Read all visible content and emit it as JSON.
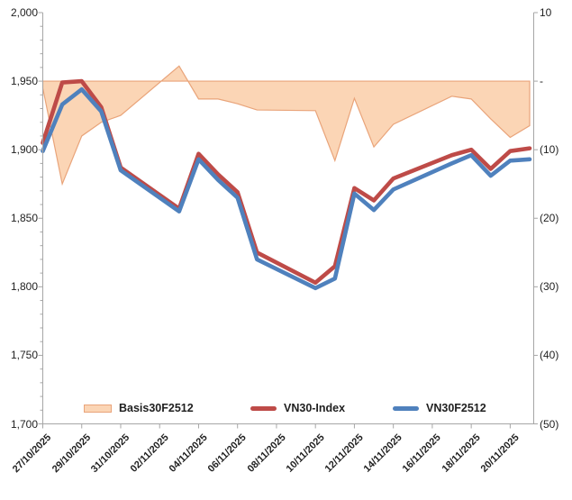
{
  "chart_data": {
    "type": "line",
    "title": "",
    "x_axis": {
      "start_date": "27/10/2025",
      "end_date": "21/11/2025",
      "tick_labels": [
        "27/10/2025",
        "29/10/2025",
        "31/10/2025",
        "02/11/2025",
        "04/11/2025",
        "06/11/2025",
        "08/11/2025",
        "10/11/2025",
        "12/11/2025",
        "14/11/2025",
        "16/11/2025",
        "18/11/2025",
        "20/11/2025"
      ]
    },
    "left_axis": {
      "min": 1700,
      "max": 2000,
      "step": 50,
      "tick_labels": [
        "2,000",
        "1,950",
        "1,900",
        "1,850",
        "1,800",
        "1,750",
        "1,700"
      ]
    },
    "right_axis": {
      "min": -50,
      "max": 10,
      "step": 10,
      "tick_labels": [
        "10",
        "-",
        "(10)",
        "(20)",
        "(30)",
        "(40)",
        "(50)"
      ]
    },
    "point_dates": [
      "27/10/2025",
      "28/10/2025",
      "29/10/2025",
      "30/10/2025",
      "31/10/2025",
      "03/11/2025",
      "04/11/2025",
      "05/11/2025",
      "06/11/2025",
      "07/11/2025",
      "10/11/2025",
      "11/11/2025",
      "12/11/2025",
      "13/11/2025",
      "14/11/2025",
      "17/11/2025",
      "18/11/2025",
      "19/11/2025",
      "20/11/2025",
      "21/11/2025"
    ],
    "day_offsets": [
      0,
      1,
      2,
      3,
      4,
      7,
      8,
      9,
      10,
      11,
      14,
      15,
      16,
      17,
      18,
      21,
      22,
      23,
      24,
      25
    ],
    "series": [
      {
        "name": "Basis30F2512",
        "type": "area",
        "axis": "right",
        "fill": "#FBD5B5",
        "stroke": "#E9A47A",
        "values": [
          -1,
          -15,
          -8,
          -6,
          -5,
          2.2,
          -2.6,
          -2.6,
          -3.3,
          -4.2,
          -4.3,
          -11.6,
          -2.5,
          -9.6,
          -6.3,
          -2.2,
          -2.6,
          -5.5,
          -8.2,
          -6.5
        ]
      },
      {
        "name": "VN30-Index",
        "type": "line",
        "axis": "left",
        "stroke": "#BE4B48",
        "values": [
          1905,
          1949,
          1950,
          1931,
          1887,
          1857,
          1897,
          1882,
          1869,
          1825,
          1803,
          1815,
          1872,
          1863,
          1879,
          1896,
          1900,
          1886,
          1899,
          1901
        ]
      },
      {
        "name": "VN30F2512",
        "type": "line",
        "axis": "left",
        "stroke": "#4F81BD",
        "values": [
          1899,
          1933,
          1944,
          1928,
          1885,
          1855,
          1893,
          1878,
          1865,
          1820,
          1799,
          1806,
          1868,
          1856,
          1871,
          1890,
          1896,
          1881,
          1892,
          1893
        ]
      }
    ],
    "legend": {
      "position": "bottom-inside"
    },
    "grid": "off",
    "axis_color": "#A6A6A6"
  }
}
